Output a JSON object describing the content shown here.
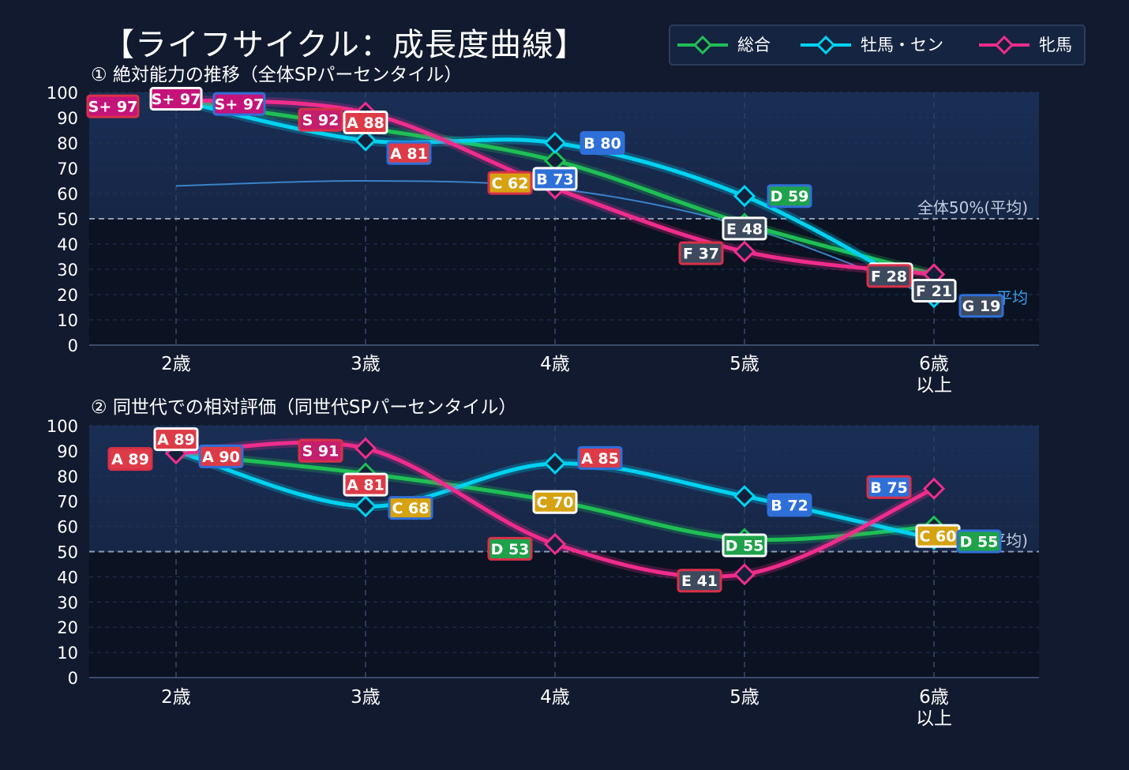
{
  "title": "【ライフサイクル：成長度曲線】",
  "legend": [
    {
      "name": "総合",
      "color": "#1fbf55"
    },
    {
      "name": "牡馬・セン",
      "color": "#00d2f0"
    },
    {
      "name": "牝馬",
      "color": "#f02c8c"
    }
  ],
  "chart_data": [
    {
      "type": "line",
      "subtitle": "① 絶対能力の推移（全体SPパーセンタイル）",
      "categories": [
        "2歳",
        "3歳",
        "4歳",
        "5歳",
        "6歳\n以上"
      ],
      "ylim": [
        0,
        100
      ],
      "yticks": [
        0,
        10,
        20,
        30,
        40,
        50,
        60,
        70,
        80,
        90,
        100
      ],
      "grid": true,
      "legend_position": "top-right",
      "reference_lines": [
        {
          "label": "全体50%(平均)",
          "value": 50,
          "color": "#c3cde0"
        },
        {
          "label": "平均",
          "value": 19,
          "color": "#3a9ee8"
        }
      ],
      "avg_curve": [
        63,
        65,
        62,
        47,
        19
      ],
      "series": [
        {
          "name": "総合",
          "values": [
            97,
            86,
            73,
            48,
            28
          ],
          "labels": [
            null,
            null,
            "B 73",
            "E 48",
            "F 28"
          ]
        },
        {
          "name": "牡馬・セン",
          "values": [
            97,
            81,
            80,
            59,
            19
          ],
          "labels": [
            "S+ 97",
            "A 81",
            "B 80",
            "D 59",
            "G 19"
          ]
        },
        {
          "name": "牝馬",
          "values": [
            97,
            92,
            62,
            37,
            28
          ],
          "labels": [
            "S+ 97",
            "S 92",
            "C 62",
            "F 37",
            "F 28"
          ]
        }
      ],
      "extra_labels": [
        "S+ 97",
        "A 88",
        "F 21"
      ]
    },
    {
      "type": "line",
      "subtitle": "② 同世代での相対評価（同世代SPパーセンタイル）",
      "categories": [
        "2歳",
        "3歳",
        "4歳",
        "5歳",
        "6歳\n以上"
      ],
      "ylim": [
        0,
        100
      ],
      "yticks": [
        0,
        10,
        20,
        30,
        40,
        50,
        60,
        70,
        80,
        90,
        100
      ],
      "grid": true,
      "reference_lines": [
        {
          "label": "平均)",
          "value": 50,
          "color": "#c3cde0"
        }
      ],
      "series": [
        {
          "name": "総合",
          "values": [
            89,
            81,
            70,
            55,
            60
          ],
          "labels": [
            "A 89",
            "A 81",
            "C 70",
            "D 55",
            "C 60"
          ]
        },
        {
          "name": "牡馬・セン",
          "values": [
            90,
            68,
            85,
            72,
            55
          ],
          "labels": [
            "A 90",
            "C 68",
            "A 85",
            "B 72",
            "D 55"
          ]
        },
        {
          "name": "牝馬",
          "values": [
            89,
            91,
            53,
            41,
            75
          ],
          "labels": [
            "A 89",
            "S 91",
            "D 53",
            "E 41",
            "B 75"
          ]
        }
      ]
    }
  ]
}
